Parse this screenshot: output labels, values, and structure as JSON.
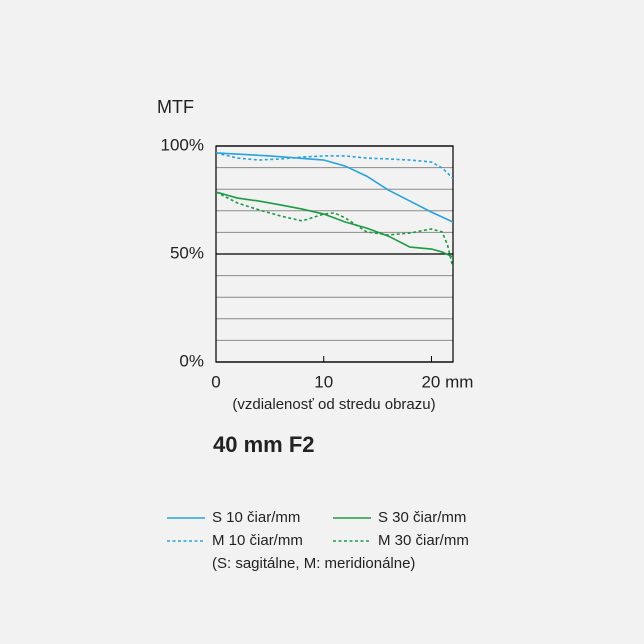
{
  "chart_data": {
    "type": "line",
    "title": "40 mm F2",
    "y_label": "MTF",
    "x_label": "(vzdialenosť od stredu obrazu)",
    "note": "(S: sagitálne, M: meridionálne)",
    "xlim": [
      0,
      22
    ],
    "ylim": [
      0,
      100
    ],
    "xticks": [
      0,
      10,
      {
        "value": 20,
        "label": "20 mm"
      }
    ],
    "yticks": [
      {
        "value": 0,
        "label": "0%"
      },
      {
        "value": 50,
        "label": "50%"
      },
      {
        "value": 100,
        "label": "100%"
      }
    ],
    "minor_yticks": [
      10,
      20,
      30,
      40,
      60,
      70,
      80,
      90
    ],
    "grid": true,
    "series": [
      {
        "name": "S 10 čiar/mm",
        "color": "#29a3dc",
        "dashed": false,
        "x": [
          0,
          5,
          10,
          12,
          14,
          16,
          18,
          20,
          22
        ],
        "values": [
          96.8,
          95.4,
          93.5,
          90.7,
          86,
          79.6,
          74.5,
          69.4,
          64.8
        ]
      },
      {
        "name": "S 30 čiar/mm",
        "color": "#1f9a45",
        "dashed": false,
        "x": [
          0,
          2,
          4,
          6,
          8,
          10,
          12,
          14,
          16,
          18,
          20,
          21,
          22
        ],
        "values": [
          78.7,
          75.9,
          74.5,
          72.7,
          70.8,
          68.5,
          64.8,
          62,
          58.3,
          53.2,
          52.3,
          50.9,
          48.6
        ]
      },
      {
        "name": "M 10 čiar/mm",
        "color": "#29a3dc",
        "dashed": true,
        "x": [
          0,
          2,
          4,
          6,
          8,
          10,
          12,
          14,
          16,
          18,
          20,
          21,
          22
        ],
        "values": [
          96.8,
          94.4,
          93.5,
          94,
          94.9,
          95.4,
          95.4,
          94.4,
          94,
          93.5,
          92.6,
          89.8,
          85
        ]
      },
      {
        "name": "M 30 čiar/mm",
        "color": "#1f9a45",
        "dashed": true,
        "x": [
          0,
          2,
          4,
          6,
          8,
          10,
          11,
          12,
          14,
          16,
          18,
          20,
          21,
          21.5,
          22
        ],
        "values": [
          78.7,
          73.6,
          70.4,
          67.6,
          65.3,
          68.5,
          69,
          66.7,
          60.2,
          58.8,
          59.7,
          61.6,
          60.2,
          54,
          43.5
        ]
      }
    ]
  }
}
